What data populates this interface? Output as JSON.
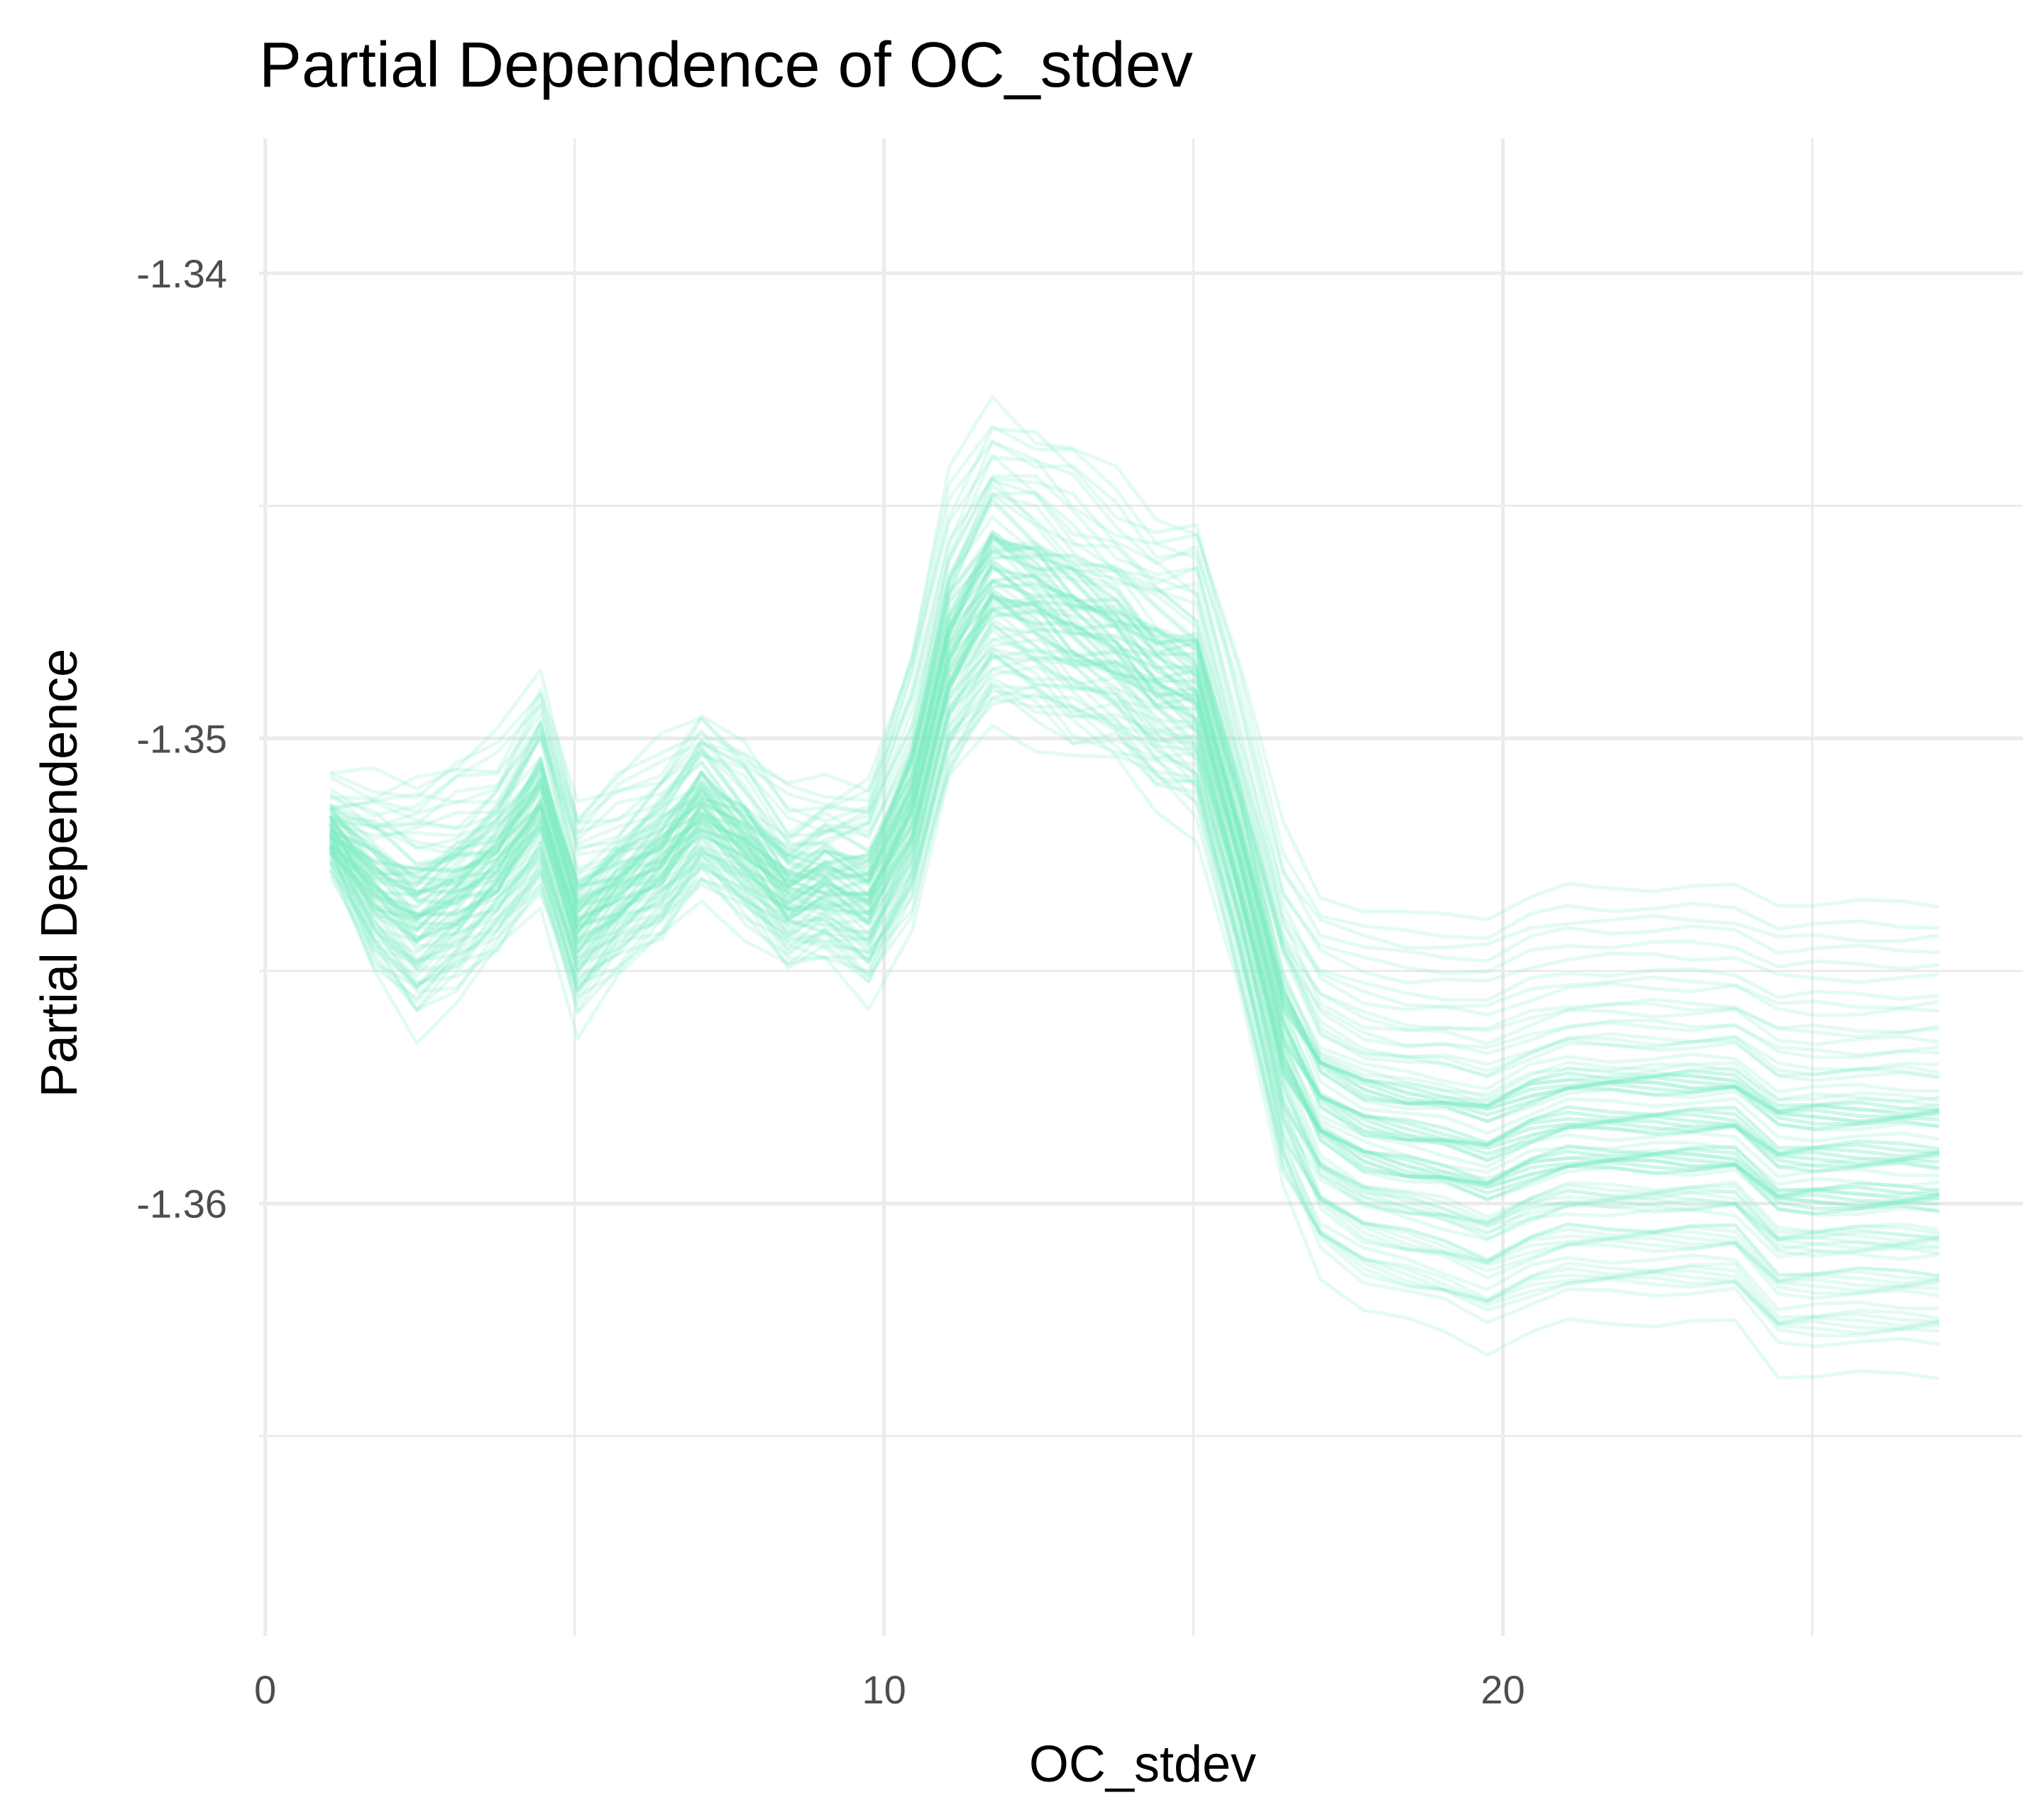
{
  "chart_data": {
    "type": "line",
    "title": "Partial Dependence of OC_stdev",
    "xlabel": "OC_stdev",
    "ylabel": "Partial Dependence",
    "x_ticks": [
      0,
      10,
      20
    ],
    "x_tick_labels": [
      "0",
      "10",
      "20"
    ],
    "y_ticks": [
      -1.34,
      -1.35,
      -1.36
    ],
    "y_tick_labels": [
      "-1.34",
      "-1.35",
      "-1.36"
    ],
    "xlim": [
      -0.1,
      28.4
    ],
    "ylim": [
      -1.3693,
      -1.3371
    ],
    "grid": true,
    "legend": "none",
    "line_color": "#7eecc6",
    "line_opacity": 0.22,
    "x": [
      1.05,
      1.75,
      2.45,
      3.1,
      3.75,
      4.45,
      5.05,
      5.7,
      6.4,
      7.05,
      7.75,
      8.45,
      9.05,
      9.75,
      10.45,
      11.05,
      11.75,
      12.45,
      13.05,
      13.75,
      14.4,
      15.05,
      15.75,
      16.45,
      17.05,
      17.75,
      18.45,
      19.05,
      19.75,
      20.45,
      21.05,
      21.75,
      22.45,
      23.05,
      23.75,
      24.45,
      25.05,
      25.75,
      26.45,
      27.05
    ],
    "center_line": [
      -1.3518,
      -1.3527,
      -1.3532,
      -1.3528,
      -1.3522,
      -1.3508,
      -1.3535,
      -1.3528,
      -1.3521,
      -1.3511,
      -1.3519,
      -1.3529,
      -1.3527,
      -1.3529,
      -1.3508,
      -1.3475,
      -1.3459,
      -1.3463,
      -1.3468,
      -1.3473,
      -1.348,
      -1.3483,
      -1.3518,
      -1.3556,
      -1.3571,
      -1.3576,
      -1.3578,
      -1.3579,
      -1.3581,
      -1.3577,
      -1.3575,
      -1.3575,
      -1.3575,
      -1.3575,
      -1.3575,
      -1.3582,
      -1.3582,
      -1.3582,
      -1.3582,
      -1.3582
    ],
    "scale_band": [
      0.25,
      0.55,
      0.7,
      0.65,
      0.6,
      0.65,
      0.6,
      0.55,
      0.55,
      0.5,
      0.5,
      0.5,
      0.5,
      0.6,
      0.75,
      0.85,
      0.9,
      0.85,
      0.85,
      0.8,
      0.8,
      0.85,
      0.9,
      1.0,
      1.05,
      1.1,
      1.12,
      1.15,
      1.2,
      1.2,
      1.2,
      1.2,
      1.2,
      1.2,
      1.2,
      1.3,
      1.3,
      1.3,
      1.3,
      1.3
    ],
    "offsets": [
      0.0037,
      0.0029,
      0.0021,
      0.0015,
      0.0011,
      0.0008,
      0.0006,
      0.0004,
      0.0003,
      0.0002,
      0.0001,
      0.0,
      -0.0001,
      -0.0002,
      -0.0003,
      -0.0004,
      -0.0005,
      -0.0006,
      -0.0007,
      -0.0008,
      -0.0009,
      -0.001,
      -0.0011,
      -0.0012,
      -0.0013,
      -0.0014,
      -0.0015,
      -0.0016,
      -0.0017,
      -0.0018,
      -0.0019,
      -0.002,
      -0.0021,
      -0.0022,
      -0.0023,
      -0.0024,
      -0.0025,
      -0.0026,
      -0.0027,
      -0.0028,
      -0.0029,
      -0.003,
      -0.0031,
      -0.0032,
      -0.0033,
      -0.0034,
      -0.0035,
      -0.0036,
      -0.0038,
      -0.0041,
      0.0033,
      0.0026,
      0.0019,
      0.0014,
      0.001,
      0.0007,
      0.0005,
      0.0003,
      0.0002,
      0.0001,
      0.0,
      -0.0001,
      -0.0002,
      -0.0003,
      -0.0004,
      -0.0005,
      -0.0006,
      -0.0007,
      -0.0008,
      -0.0009,
      -0.001,
      -0.0011,
      -0.0012,
      -0.0013,
      -0.0014,
      -0.0015,
      -0.0016,
      -0.0018,
      -0.002,
      -0.0022,
      0.003,
      0.0023,
      0.0017,
      0.0012,
      0.0009,
      0.0006,
      0.0004,
      0.0002,
      0.0,
      -0.0002,
      -0.0004,
      -0.0006,
      -0.0008,
      -0.001,
      -0.0012,
      -0.0014,
      -0.0016,
      -0.0019,
      -0.0024,
      -0.003
    ]
  }
}
